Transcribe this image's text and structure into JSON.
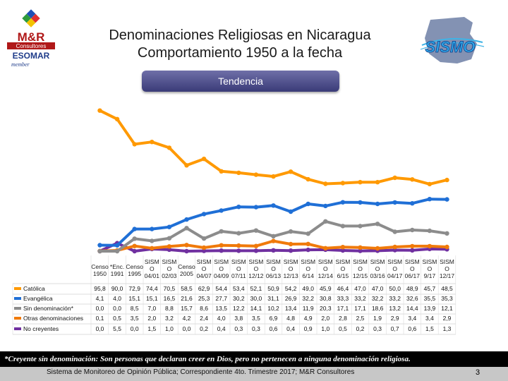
{
  "header": {
    "title_line1": "Denominaciones Religiosas en Nicaragua",
    "title_line2": "Comportamiento 1950 a la fecha",
    "pill_label": "Tendencia"
  },
  "logos": {
    "left_brand": "M&R",
    "left_sub": "Consultores",
    "left_org": "ESOMAR",
    "left_member": "member",
    "right_brand": "SISMO"
  },
  "colors": {
    "catolica": "#ff9900",
    "evangelica": "#1f6fd6",
    "sin_denominacion": "#8c8c8c",
    "otras": "#f07a0a",
    "no_creyentes": "#7030a0",
    "pill": "#4b4b8a"
  },
  "chart_data": {
    "type": "line",
    "title": "Tendencia",
    "categories": [
      [
        "Censo",
        "1950"
      ],
      [
        "*Enc.",
        "1991"
      ],
      [
        "Censo",
        "1995"
      ],
      [
        "SISM",
        "O",
        "04/01"
      ],
      [
        "SISM",
        "O",
        "02/03"
      ],
      [
        "Censo",
        "2005"
      ],
      [
        "SISM",
        "O",
        "04/07"
      ],
      [
        "SISM",
        "O",
        "04/09"
      ],
      [
        "SISM",
        "O",
        "07/11"
      ],
      [
        "SISM",
        "O",
        "12/12"
      ],
      [
        "SISM",
        "O",
        "06/13"
      ],
      [
        "SISM",
        "O",
        "12/13"
      ],
      [
        "SISM",
        "O",
        "6/14"
      ],
      [
        "SISM",
        "O",
        "12/14"
      ],
      [
        "SISM",
        "O",
        "6/15"
      ],
      [
        "SISM",
        "O",
        "12/15"
      ],
      [
        "SISM",
        "O",
        "03/16"
      ],
      [
        "SISM",
        "O",
        "04/17"
      ],
      [
        "SISM",
        "O",
        "06/17"
      ],
      [
        "SISM",
        "O",
        "9/17"
      ],
      [
        "SISM",
        "O",
        "12/17"
      ]
    ],
    "ylim": [
      0,
      100
    ],
    "legend_position": "bottom-left table",
    "series": [
      {
        "name": "Católica",
        "key": "catolica",
        "values": [
          95.8,
          90.0,
          72.9,
          74.4,
          70.5,
          58.5,
          62.9,
          54.4,
          53.4,
          52.1,
          50.9,
          54.2,
          49.0,
          45.9,
          46.4,
          47.0,
          47.0,
          50.0,
          48.9,
          45.7,
          48.5
        ],
        "labels": [
          "95,8",
          "90,0",
          "72,9",
          "74,4",
          "70,5",
          "58,5",
          "62,9",
          "54,4",
          "53,4",
          "52,1",
          "50,9",
          "54,2",
          "49,0",
          "45,9",
          "46,4",
          "47,0",
          "47,0",
          "50,0",
          "48,9",
          "45,7",
          "48,5"
        ]
      },
      {
        "name": "Evangélica",
        "key": "evangelica",
        "values": [
          4.1,
          4.0,
          15.1,
          15.1,
          16.5,
          21.6,
          25.3,
          27.7,
          30.2,
          30.0,
          31.1,
          26.9,
          32.2,
          30.8,
          33.3,
          33.2,
          32.2,
          33.2,
          32.6,
          35.5,
          35.3
        ],
        "labels": [
          "4,1",
          "4,0",
          "15,1",
          "15,1",
          "16,5",
          "21,6",
          "25,3",
          "27,7",
          "30,2",
          "30,0",
          "31,1",
          "26,9",
          "32,2",
          "30,8",
          "33,3",
          "33,2",
          "32,2",
          "33,2",
          "32,6",
          "35,5",
          "35,3"
        ]
      },
      {
        "name": "Sin denominación*",
        "key": "sin_denominacion",
        "values": [
          0.0,
          0.0,
          8.5,
          7.0,
          8.8,
          15.7,
          8.6,
          13.5,
          12.2,
          14.1,
          10.2,
          13.4,
          11.9,
          20.3,
          17.1,
          17.1,
          18.6,
          13.2,
          14.4,
          13.9,
          12.1
        ],
        "labels": [
          "0,0",
          "0,0",
          "8,5",
          "7,0",
          "8,8",
          "15,7",
          "8,6",
          "13,5",
          "12,2",
          "14,1",
          "10,2",
          "13,4",
          "11,9",
          "20,3",
          "17,1",
          "17,1",
          "18,6",
          "13,2",
          "14,4",
          "13,9",
          "12,1"
        ]
      },
      {
        "name": "Otras denominaciones",
        "key": "otras",
        "values": [
          0.1,
          0.5,
          3.5,
          2.0,
          3.2,
          4.2,
          2.4,
          4.0,
          3.8,
          3.5,
          6.9,
          4.8,
          4.9,
          2.0,
          2.8,
          2.5,
          1.9,
          2.9,
          3.4,
          3.4,
          2.9
        ],
        "labels": [
          "0,1",
          "0,5",
          "3,5",
          "2,0",
          "3,2",
          "4,2",
          "2,4",
          "4,0",
          "3,8",
          "3,5",
          "6,9",
          "4,8",
          "4,9",
          "2,0",
          "2,8",
          "2,5",
          "1,9",
          "2,9",
          "3,4",
          "3,4",
          "2,9"
        ]
      },
      {
        "name": "No creyentes",
        "key": "no_creyentes",
        "values": [
          0.0,
          5.5,
          0.0,
          1.5,
          1.0,
          0.0,
          0.2,
          0.4,
          0.3,
          0.3,
          0.6,
          0.4,
          0.9,
          1.0,
          0.5,
          0.2,
          0.3,
          0.7,
          0.6,
          1.5,
          1.3
        ],
        "labels": [
          "0,0",
          "5,5",
          "0,0",
          "1,5",
          "1,0",
          "0,0",
          "0,2",
          "0,4",
          "0,3",
          "0,3",
          "0,6",
          "0,4",
          "0,9",
          "1,0",
          "0,5",
          "0,2",
          "0,3",
          "0,7",
          "0,6",
          "1,5",
          "1,3"
        ]
      }
    ]
  },
  "footer": {
    "footnote": "*Creyente sin denominación: Son personas que declaran creer en Dios, pero no pertenecen a ninguna denominación religiosa.",
    "source": "Sistema de Monitoreo de Opinión Pública; Correspondiente 4to. Trimestre 2017; M&R Consultores",
    "page_number": "3"
  }
}
